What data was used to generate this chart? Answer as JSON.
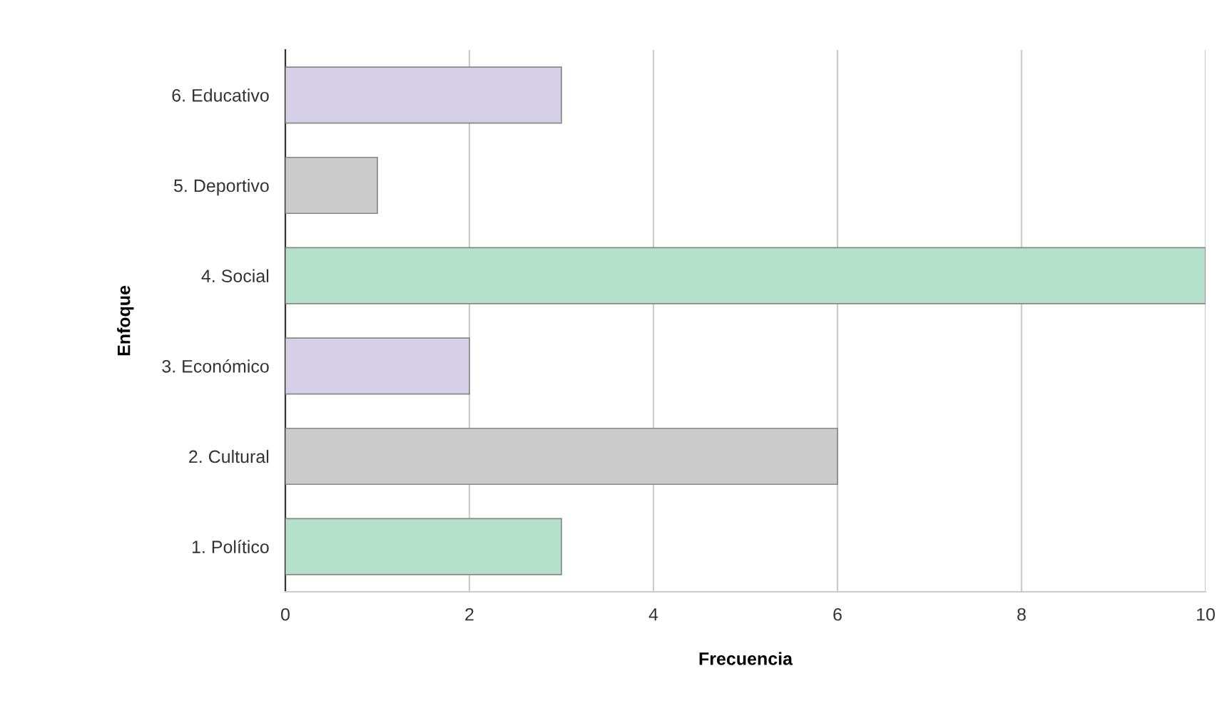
{
  "chart_data": {
    "type": "bar",
    "orientation": "horizontal",
    "xlabel": "Frecuencia",
    "ylabel": "Enfoque",
    "categories": [
      "6. Educativo",
      "5. Deportivo",
      "4. Social",
      "3. Económico",
      "2. Cultural",
      "1. Político"
    ],
    "values": [
      3,
      1,
      10,
      2,
      6,
      3
    ],
    "colors": [
      "#d6cfe8",
      "#cbcbcb",
      "#b5e0cb",
      "#d6cfe8",
      "#cbcbcb",
      "#b5e0cb"
    ],
    "xlim": [
      0,
      10
    ],
    "xticks": [
      0,
      2,
      4,
      6,
      8,
      10
    ],
    "grid": "x"
  }
}
